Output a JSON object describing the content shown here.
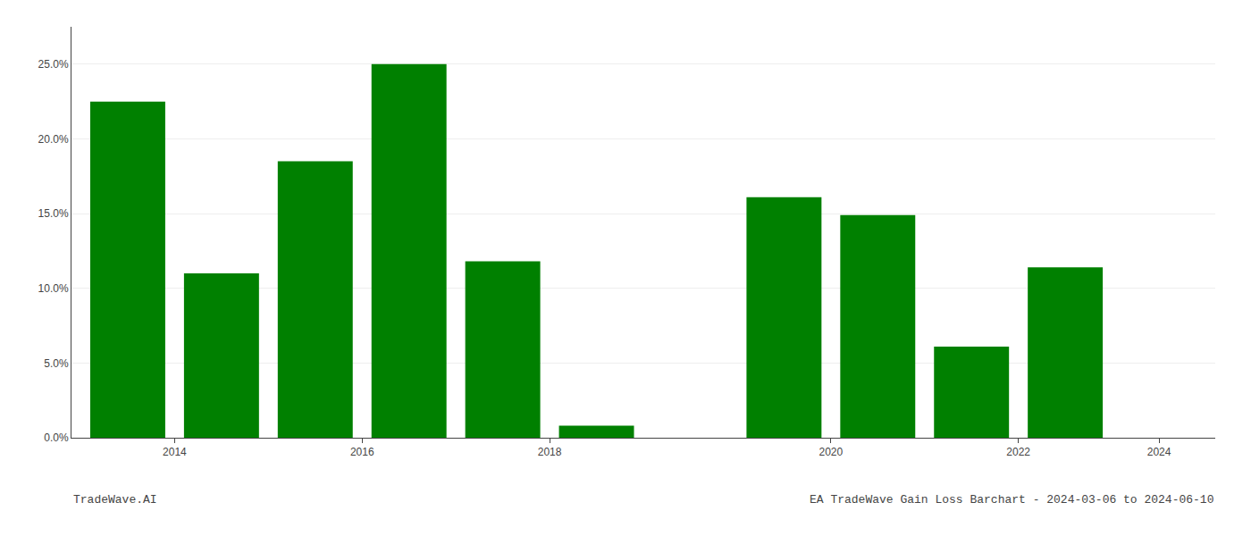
{
  "chart_data": {
    "type": "bar",
    "x": [
      2013,
      2014,
      2015,
      2016,
      2017,
      2018,
      2020,
      2021,
      2022,
      2023
    ],
    "values": [
      0.225,
      0.11,
      0.185,
      0.25,
      0.118,
      0.008,
      0.161,
      0.149,
      0.061,
      0.114
    ],
    "color": "#008000",
    "xlim": [
      2012.4,
      2024.6
    ],
    "xticks": [
      {
        "value": 2013.5,
        "label": "2014"
      },
      {
        "value": 2015.5,
        "label": "2016"
      },
      {
        "value": 2017.5,
        "label": "2018"
      },
      {
        "value": 2020.5,
        "label": "2020"
      },
      {
        "value": 2022.5,
        "label": "2022"
      },
      {
        "value": 2024.0,
        "label": "2024"
      }
    ],
    "ylim": [
      0,
      0.275
    ],
    "yticks": [
      {
        "value": 0.0,
        "label": "0.0%"
      },
      {
        "value": 0.05,
        "label": "5.0%"
      },
      {
        "value": 0.1,
        "label": "10.0%"
      },
      {
        "value": 0.15,
        "label": "15.0%"
      },
      {
        "value": 0.2,
        "label": "20.0%"
      },
      {
        "value": 0.25,
        "label": "25.0%"
      }
    ],
    "grid": true,
    "annotations": [
      "TradeWave.AI",
      "EA TradeWave Gain Loss Barchart - 2024-03-06 to 2024-06-10"
    ]
  }
}
